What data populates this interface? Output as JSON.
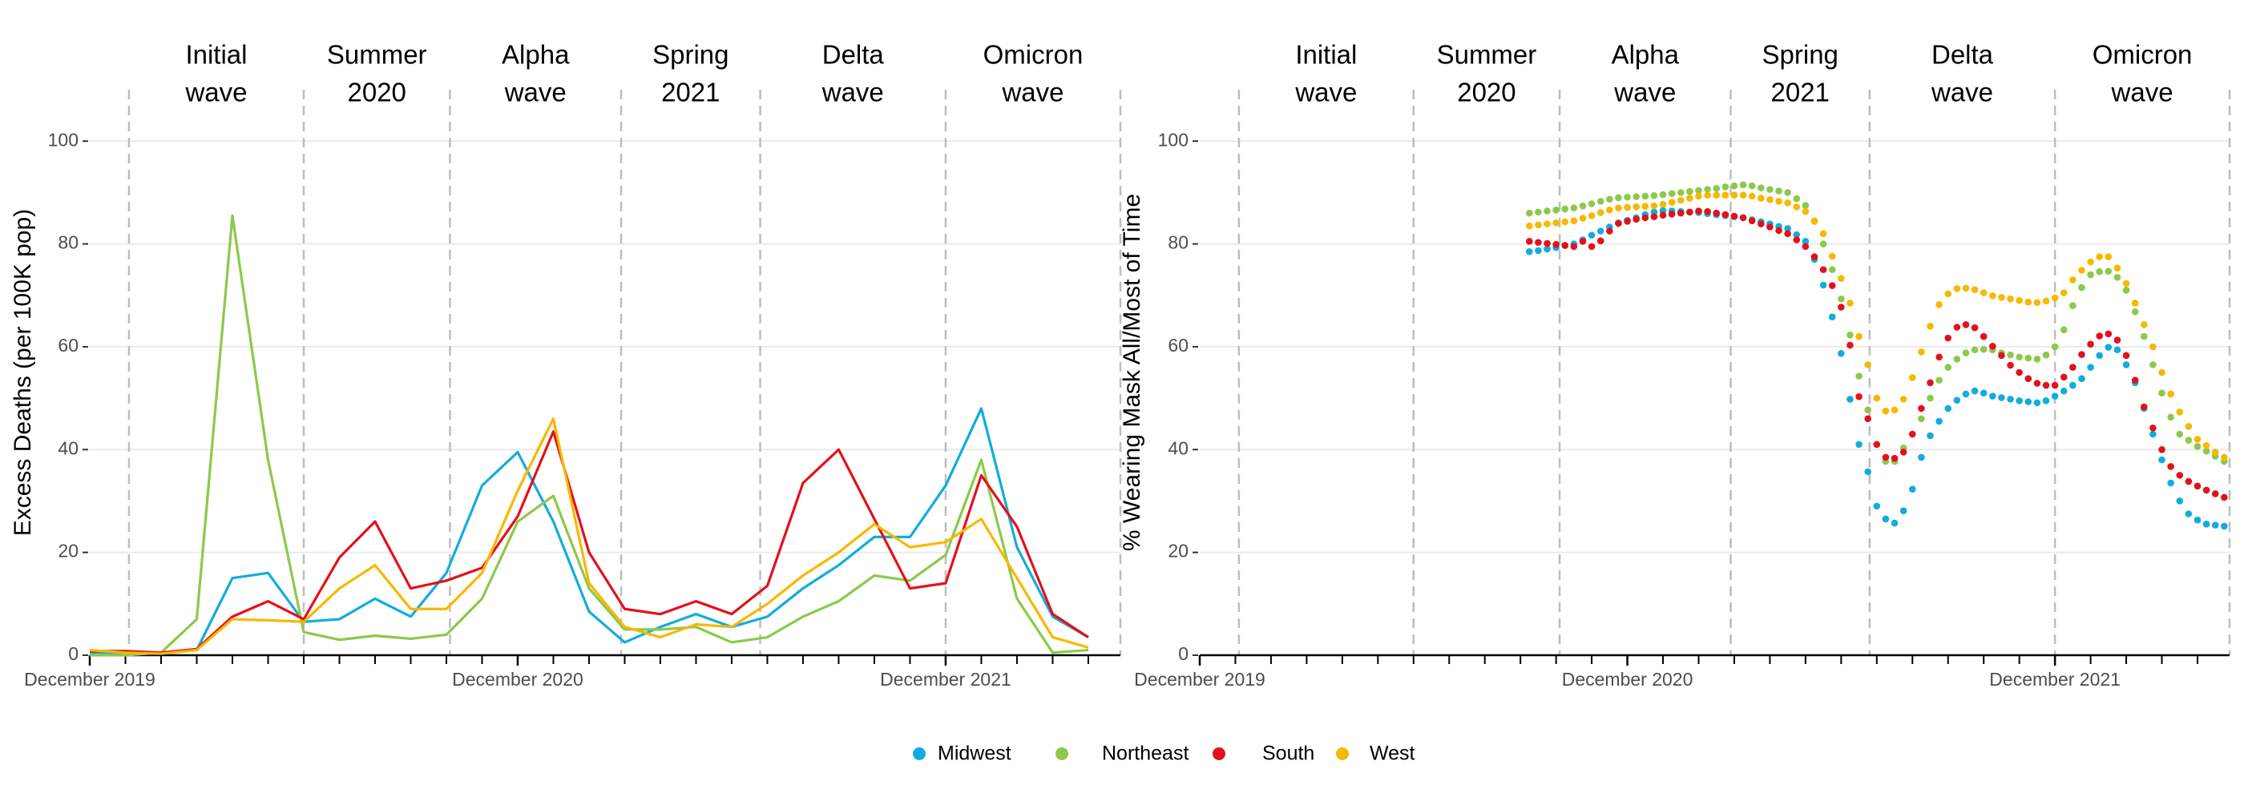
{
  "chart_data": [
    {
      "type": "line",
      "ylabel": "Excess Deaths (per 100K pop)",
      "x": [
        0,
        1,
        2,
        3,
        4,
        5,
        6,
        7,
        8,
        9,
        10,
        11,
        12,
        13,
        14,
        15,
        16,
        17,
        18,
        19,
        20,
        21,
        22,
        23,
        24,
        25,
        26,
        27,
        28
      ],
      "series": [
        {
          "name": "Midwest",
          "color": "#12acde",
          "values": [
            0.5,
            0.5,
            0.3,
            1,
            15,
            16,
            6.5,
            7,
            11,
            7.5,
            16,
            33,
            39.5,
            26,
            8.5,
            2.5,
            5.5,
            8,
            5.5,
            7.5,
            13,
            17.5,
            23,
            23,
            33,
            48,
            21,
            7.5,
            3.5
          ]
        },
        {
          "name": "Northeast",
          "color": "#8cc94a",
          "values": [
            0,
            0,
            0.5,
            7,
            85.5,
            38,
            4.5,
            3,
            3.8,
            3.2,
            4,
            11,
            26,
            31,
            13,
            5,
            5,
            5.5,
            2.5,
            3.5,
            7.5,
            10.5,
            15.5,
            14.5,
            19.5,
            38,
            11,
            0.5,
            1
          ]
        },
        {
          "name": "South",
          "color": "#e3111b",
          "values": [
            0.8,
            0.8,
            0.5,
            1.2,
            7.5,
            10.5,
            7,
            19,
            26,
            13,
            14.5,
            17,
            27,
            43.5,
            20,
            9,
            8,
            10.5,
            8,
            13.5,
            33.5,
            40,
            26.5,
            13,
            14,
            35,
            25,
            8,
            3.5
          ]
        },
        {
          "name": "West",
          "color": "#f6b800",
          "values": [
            1,
            0.5,
            0.3,
            1,
            7,
            6.8,
            6.5,
            13,
            17.5,
            9,
            9,
            16,
            32,
            46,
            14,
            5.5,
            3.5,
            6,
            5.5,
            10,
            15.5,
            20,
            25.5,
            21,
            22,
            26.5,
            15,
            3.5,
            1.5
          ]
        }
      ],
      "xlim": [
        0,
        28.9
      ],
      "ylim": [
        0,
        110
      ],
      "yticks": [
        0,
        20,
        40,
        60,
        80,
        100
      ],
      "xticks": [
        {
          "value": 0,
          "label": "December 2019"
        },
        {
          "value": 12,
          "label": "December 2020"
        },
        {
          "value": 24,
          "label": "December 2021"
        }
      ],
      "xminorticks": [
        1,
        2,
        3,
        4,
        5,
        6,
        7,
        8,
        9,
        10,
        11,
        13,
        14,
        15,
        16,
        17,
        18,
        19,
        20,
        21,
        22,
        23,
        25,
        26,
        27,
        28
      ],
      "grid": true,
      "waves": [
        {
          "label": [
            "Initial",
            "wave"
          ],
          "start": 1.1
        },
        {
          "label": [
            "Summer",
            "2020"
          ],
          "start": 6
        },
        {
          "label": [
            "Alpha",
            "wave"
          ],
          "start": 10.1
        },
        {
          "label": [
            "Spring",
            "2021"
          ],
          "start": 14.9
        },
        {
          "label": [
            "Delta",
            "wave"
          ],
          "start": 18.8
        },
        {
          "label": [
            "Omicron",
            "wave"
          ],
          "start": 24
        }
      ],
      "wave_end": 28.9
    },
    {
      "type": "scatter",
      "ylabel": "% Wearing Mask All/Most of Time",
      "x": [
        9.25,
        9.5,
        9.75,
        10,
        10.25,
        10.5,
        10.75,
        11,
        11.25,
        11.5,
        11.75,
        12,
        12.25,
        12.5,
        12.75,
        13,
        13.25,
        13.5,
        13.75,
        14,
        14.25,
        14.5,
        14.75,
        15,
        15.25,
        15.5,
        15.75,
        16,
        16.25,
        16.5,
        16.75,
        17,
        17.25,
        17.5,
        17.75,
        18,
        18.25,
        18.5,
        18.75,
        19,
        19.25,
        19.5,
        19.75,
        20,
        20.25,
        20.5,
        20.75,
        21,
        21.25,
        21.5,
        21.75,
        22,
        22.25,
        22.5,
        22.75,
        23,
        23.25,
        23.5,
        23.75,
        24,
        24.25,
        24.5,
        24.75,
        25,
        25.25,
        25.5,
        25.75,
        26,
        26.25,
        26.5,
        26.75,
        27,
        27.25,
        27.5,
        27.75,
        28,
        28.25,
        28.5,
        28.75
      ],
      "series": [
        {
          "name": "Midwest",
          "color": "#12acde",
          "values": [
            78.5,
            78.7,
            79,
            79.3,
            79.7,
            80,
            80.8,
            81.7,
            82.5,
            83.3,
            84.1,
            84.6,
            85.1,
            85.7,
            86.2,
            86.5,
            86.4,
            86.3,
            86.2,
            86.1,
            85.9,
            85.7,
            85.5,
            85.3,
            85.1,
            84.7,
            84.3,
            83.9,
            83.4,
            83,
            81.8,
            80.5,
            77,
            72,
            65.8,
            58.7,
            49.8,
            41,
            35.7,
            29,
            26.5,
            25.7,
            28.1,
            32.3,
            38.5,
            42.7,
            45.5,
            48,
            49.6,
            50.8,
            51.4,
            51,
            50.4,
            50.1,
            49.8,
            49.5,
            49.3,
            49.1,
            49.5,
            50.4,
            51.4,
            52.5,
            53.8,
            56,
            58.3,
            59.9,
            59.4,
            56.5,
            53,
            48,
            43,
            38,
            33.5,
            30,
            27.5,
            26.3,
            25.5,
            25.3,
            25.1
          ]
        },
        {
          "name": "Northeast",
          "color": "#8cc94a",
          "values": [
            86,
            86.2,
            86.4,
            86.6,
            86.8,
            87,
            87.4,
            87.8,
            88.3,
            88.7,
            89,
            89.1,
            89.2,
            89.3,
            89.4,
            89.6,
            89.8,
            90,
            90.2,
            90.4,
            90.6,
            90.8,
            91.1,
            91.3,
            91.5,
            91.3,
            90.9,
            90.6,
            90.3,
            90,
            88.8,
            87.5,
            84.4,
            80,
            75,
            69.3,
            62.3,
            54.3,
            47.7,
            41,
            37.7,
            37.7,
            40.3,
            43,
            46,
            50,
            53.5,
            56,
            57.6,
            58.8,
            59.4,
            59.5,
            59.4,
            58.8,
            58.4,
            58,
            57.8,
            57.6,
            58.4,
            60,
            63.3,
            68,
            71.5,
            74,
            74.6,
            74.7,
            73.5,
            71,
            66.8,
            62,
            56.5,
            51,
            46.3,
            43,
            41.8,
            40.6,
            39.7,
            38.7,
            37.7
          ]
        },
        {
          "name": "South",
          "color": "#e3111b",
          "values": [
            80.5,
            80.3,
            80.1,
            79.9,
            79.7,
            79.5,
            80.5,
            79.5,
            80.6,
            82.5,
            84,
            84.4,
            84.8,
            85.1,
            85.3,
            85.6,
            85.8,
            86,
            86.2,
            86.4,
            86.3,
            86,
            85.7,
            85.4,
            85.1,
            84.5,
            83.9,
            83.3,
            82.6,
            82,
            80.8,
            79.5,
            77.5,
            75,
            71.9,
            67.7,
            60.3,
            50.3,
            46,
            41,
            38.5,
            38.3,
            39.5,
            43,
            48,
            53,
            58,
            61.7,
            63.8,
            64.3,
            63.7,
            62,
            60.1,
            58.3,
            56.4,
            55,
            53.8,
            52.9,
            52.5,
            52.5,
            54.1,
            56,
            58.5,
            60.5,
            62.1,
            62.5,
            61.3,
            58.3,
            53.5,
            48.3,
            44.2,
            40,
            36.7,
            35,
            33.8,
            32.9,
            32.1,
            31.4,
            30.7
          ]
        },
        {
          "name": "West",
          "color": "#f6b800",
          "values": [
            83.5,
            83.7,
            83.9,
            84.1,
            84.3,
            84.5,
            85,
            85.5,
            86.1,
            86.6,
            87,
            87.1,
            87.2,
            87.3,
            87.4,
            87.7,
            88.1,
            88.5,
            88.9,
            89.3,
            89.5,
            89.5,
            89.5,
            89.5,
            89.5,
            89.3,
            88.9,
            88.6,
            88.3,
            88,
            87.2,
            86.3,
            84.5,
            82,
            77.6,
            73.3,
            68.5,
            62,
            56.5,
            50,
            47.5,
            47.7,
            49.8,
            54,
            59,
            64,
            68.2,
            70.3,
            71.3,
            71.4,
            71.1,
            70.5,
            69.9,
            69.6,
            69.3,
            69,
            68.7,
            68.6,
            68.9,
            69.5,
            70.5,
            73,
            74.9,
            76.5,
            77.5,
            77.5,
            75.3,
            72.3,
            68.5,
            64.3,
            60,
            55,
            50.8,
            47.3,
            44.5,
            42,
            40.8,
            39.5,
            38.5
          ]
        }
      ],
      "xlim": [
        0,
        28.9
      ],
      "ylim": [
        0,
        110
      ],
      "yticks": [
        0,
        20,
        40,
        60,
        80,
        100
      ],
      "xticks": [
        {
          "value": 0,
          "label": "December 2019"
        },
        {
          "value": 12,
          "label": "December 2020"
        },
        {
          "value": 24,
          "label": "December 2021"
        }
      ],
      "xminorticks": [
        1,
        2,
        3,
        4,
        5,
        6,
        7,
        8,
        9,
        10,
        11,
        13,
        14,
        15,
        16,
        17,
        18,
        19,
        20,
        21,
        22,
        23,
        25,
        26,
        27,
        28
      ],
      "grid": true,
      "waves": [
        {
          "label": [
            "Initial",
            "wave"
          ],
          "start": 1.1
        },
        {
          "label": [
            "Summer",
            "2020"
          ],
          "start": 6
        },
        {
          "label": [
            "Alpha",
            "wave"
          ],
          "start": 10.1
        },
        {
          "label": [
            "Spring",
            "2021"
          ],
          "start": 14.9
        },
        {
          "label": [
            "Delta",
            "wave"
          ],
          "start": 18.8
        },
        {
          "label": [
            "Omicron",
            "wave"
          ],
          "start": 24
        }
      ],
      "wave_end": 28.9
    }
  ],
  "legend": {
    "position": "bottom"
  }
}
